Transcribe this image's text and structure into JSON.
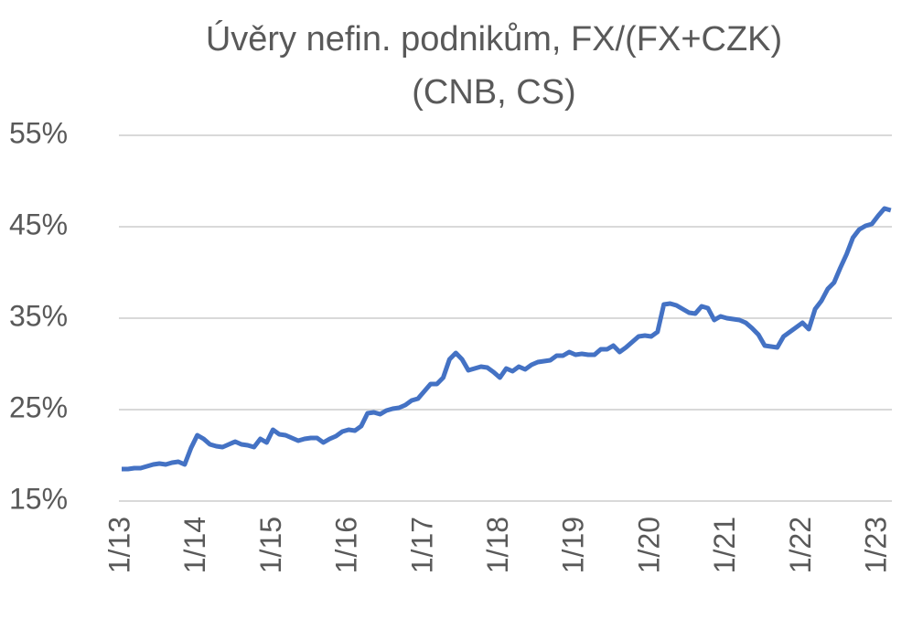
{
  "chart_data": {
    "type": "line",
    "title": "Úvěry nefin. podnikům, FX/(FX+CZK)",
    "subtitle": "(CNB, CS)",
    "categories": [
      "1/13",
      null,
      null,
      null,
      null,
      null,
      null,
      null,
      null,
      null,
      null,
      null,
      "1/14",
      null,
      null,
      null,
      null,
      null,
      null,
      null,
      null,
      null,
      null,
      null,
      "1/15",
      null,
      null,
      null,
      null,
      null,
      null,
      null,
      null,
      null,
      null,
      null,
      "1/16",
      null,
      null,
      null,
      null,
      null,
      null,
      null,
      null,
      null,
      null,
      null,
      "1/17",
      null,
      null,
      null,
      null,
      null,
      null,
      null,
      null,
      null,
      null,
      null,
      "1/18",
      null,
      null,
      null,
      null,
      null,
      null,
      null,
      null,
      null,
      null,
      null,
      "1/19",
      null,
      null,
      null,
      null,
      null,
      null,
      null,
      null,
      null,
      null,
      null,
      "1/20",
      null,
      null,
      null,
      null,
      null,
      null,
      null,
      null,
      null,
      null,
      null,
      "1/21",
      null,
      null,
      null,
      null,
      null,
      null,
      null,
      null,
      null,
      null,
      null,
      "1/22",
      null,
      null,
      null,
      null,
      null,
      null,
      null,
      null,
      null,
      null,
      null,
      "1/23",
      null,
      null
    ],
    "series": [
      {
        "color": "#4472c4",
        "values": [
          18.5,
          18.5,
          18.6,
          18.6,
          18.8,
          19.0,
          19.1,
          19.0,
          19.2,
          19.3,
          19.0,
          20.8,
          22.2,
          21.8,
          21.2,
          21.0,
          20.9,
          21.2,
          21.5,
          21.2,
          21.1,
          20.9,
          21.8,
          21.4,
          22.8,
          22.3,
          22.2,
          21.9,
          21.6,
          21.8,
          21.9,
          21.9,
          21.4,
          21.8,
          22.1,
          22.6,
          22.8,
          22.7,
          23.2,
          24.6,
          24.7,
          24.5,
          24.9,
          25.1,
          25.2,
          25.5,
          26.0,
          26.2,
          27.0,
          27.8,
          27.8,
          28.5,
          30.5,
          31.2,
          30.5,
          29.3,
          29.5,
          29.7,
          29.6,
          29.1,
          28.5,
          29.5,
          29.2,
          29.7,
          29.4,
          29.9,
          30.2,
          30.3,
          30.4,
          30.9,
          30.9,
          31.3,
          31.0,
          31.1,
          31.0,
          31.0,
          31.6,
          31.6,
          32.0,
          31.3,
          31.8,
          32.4,
          33.0,
          33.1,
          33.0,
          33.5,
          36.5,
          36.6,
          36.4,
          36.0,
          35.6,
          35.5,
          36.3,
          36.1,
          34.8,
          35.2,
          35.0,
          34.9,
          34.8,
          34.5,
          33.9,
          33.2,
          32.0,
          31.9,
          31.8,
          33.0,
          33.5,
          34.0,
          34.5,
          33.8,
          36.0,
          36.9,
          38.2,
          38.9,
          40.5,
          42.0,
          43.8,
          44.7,
          45.1,
          45.3,
          46.2,
          47.0,
          46.8
        ]
      }
    ],
    "ylim": [
      15,
      55
    ],
    "yticks": [
      {
        "value": 15,
        "label": "15%"
      },
      {
        "value": 25,
        "label": "25%"
      },
      {
        "value": 35,
        "label": "35%"
      },
      {
        "value": 45,
        "label": "45%"
      },
      {
        "value": 55,
        "label": "55%"
      }
    ],
    "grid": true
  }
}
